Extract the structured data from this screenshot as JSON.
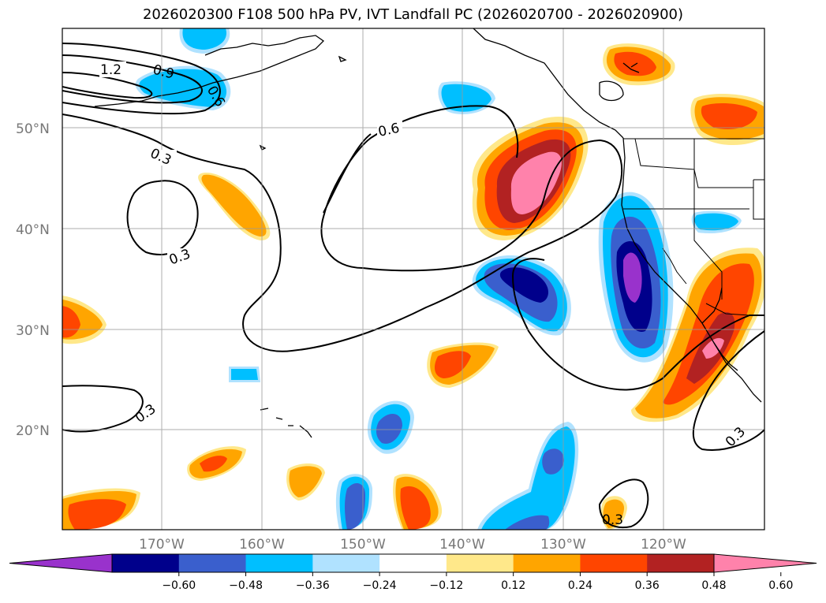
{
  "title": "2026020300 F108 500 hPa PV, IVT Landfall PC (2026020700 - 2026020900)",
  "map": {
    "lat_ticks": [
      "50°N",
      "40°N",
      "30°N",
      "20°N"
    ],
    "lon_ticks": [
      "170°W",
      "160°W",
      "150°W",
      "140°W",
      "130°W",
      "120°W"
    ],
    "pv_contour_labels": [
      "1.2",
      "0.9",
      "0.6",
      "0.6",
      "0.3",
      "0.3",
      "0.3",
      "0.3",
      "0.3"
    ]
  },
  "colorbar": {
    "tick_labels": [
      "−0.60",
      "−0.48",
      "−0.36",
      "−0.24",
      "−0.12",
      "0.12",
      "0.24",
      "0.36",
      "0.48",
      "0.60"
    ],
    "colors": [
      "#9932cc",
      "#00008b",
      "#3a5fcd",
      "#00bfff",
      "#b0e2ff",
      "#ffffff",
      "#ffe88a",
      "#ffa500",
      "#ff4500",
      "#b22222",
      "#ff82ab"
    ]
  }
}
